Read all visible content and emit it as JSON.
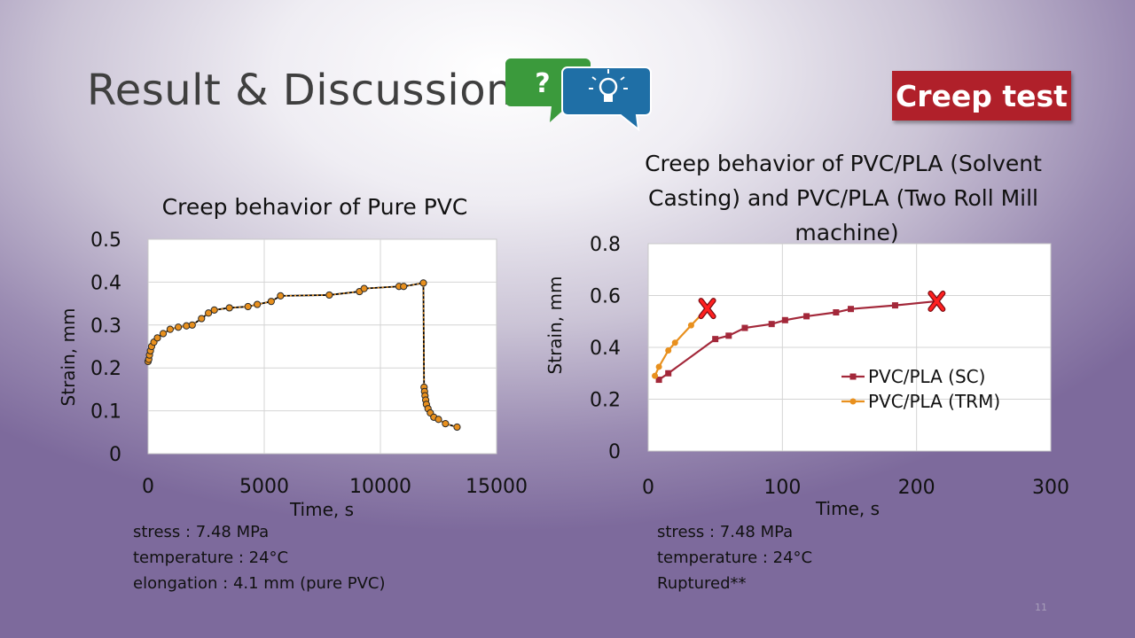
{
  "slide": {
    "title": "Result & Discussion",
    "badge": "Creep test",
    "page_number": "11",
    "icons": {
      "question_bubble": "question-bubble-icon",
      "idea_bubble": "lightbulb-bubble-icon"
    },
    "colors": {
      "badge": "#b0202a",
      "green_bubble": "#3b9a3c",
      "blue_bubble": "#1f6fa6"
    }
  },
  "notes_left": [
    "stress : 7.48 MPa",
    "temperature : 24°C",
    "elongation : 4.1 mm (pure PVC)"
  ],
  "notes_right": [
    "stress : 7.48 MPa",
    "temperature : 24°C",
    "Ruptured**"
  ],
  "chart_data": [
    {
      "type": "scatter",
      "title": "Creep behavior of Pure PVC",
      "xlabel": "Time, s",
      "ylabel": "Strain, mm",
      "xlim": [
        0,
        15000
      ],
      "ylim": [
        0,
        0.5
      ],
      "xticks": [
        0,
        5000,
        10000,
        15000
      ],
      "yticks": [
        0,
        0.1,
        0.2,
        0.3,
        0.4,
        0.5
      ],
      "ytick_labels": [
        "0",
        "0.1",
        "0.2",
        "0.3",
        "0.4",
        "0.5"
      ],
      "grid": true,
      "series": [
        {
          "color": "#e8901e",
          "marker": "circle",
          "trendline": "dotted",
          "line_color": "#000000",
          "x": [
            0,
            30,
            60,
            100,
            150,
            250,
            400,
            650,
            950,
            1300,
            1650,
            1900,
            2300,
            2600,
            2850,
            3500,
            4300,
            4700,
            5300,
            5700,
            7800,
            9100,
            9300,
            10800,
            11000,
            11850,
            11880,
            11900,
            11920,
            11950,
            11980,
            12050,
            12150,
            12300,
            12500,
            12800,
            13300
          ],
          "y": [
            0.215,
            0.22,
            0.23,
            0.24,
            0.25,
            0.26,
            0.27,
            0.28,
            0.29,
            0.295,
            0.298,
            0.3,
            0.315,
            0.328,
            0.335,
            0.34,
            0.343,
            0.348,
            0.355,
            0.368,
            0.37,
            0.378,
            0.385,
            0.39,
            0.39,
            0.398,
            0.155,
            0.145,
            0.135,
            0.125,
            0.115,
            0.105,
            0.095,
            0.085,
            0.08,
            0.07,
            0.062
          ]
        }
      ]
    },
    {
      "type": "line",
      "title": "Creep behavior of PVC/PLA (Solvent Casting) and PVC/PLA (Two Roll Mill machine)",
      "xlabel": "Time, s",
      "ylabel": "Strain, mm",
      "xlim": [
        0,
        300
      ],
      "ylim": [
        0,
        0.8
      ],
      "xticks": [
        0,
        100,
        200,
        300
      ],
      "yticks": [
        0,
        0.2,
        0.4,
        0.6,
        0.8
      ],
      "ytick_labels": [
        "0",
        "0.2",
        "0.4",
        "0.6",
        "0.8"
      ],
      "grid": true,
      "legend_position": "right",
      "series": [
        {
          "name": "PVC/PLA (SC)",
          "color": "#a3283a",
          "marker": "square",
          "x": [
            8,
            15,
            50,
            60,
            72,
            92,
            102,
            118,
            140,
            151,
            184,
            215
          ],
          "y": [
            0.275,
            0.3,
            0.432,
            0.445,
            0.475,
            0.49,
            0.505,
            0.52,
            0.535,
            0.548,
            0.562,
            0.578
          ],
          "end_marker": "red-x"
        },
        {
          "name": "PVC/PLA (TRM)",
          "color": "#e8901e",
          "marker": "circle",
          "x": [
            5,
            8,
            15,
            20,
            32,
            44
          ],
          "y": [
            0.29,
            0.325,
            0.388,
            0.418,
            0.485,
            0.55
          ],
          "end_marker": "red-x"
        }
      ]
    }
  ]
}
